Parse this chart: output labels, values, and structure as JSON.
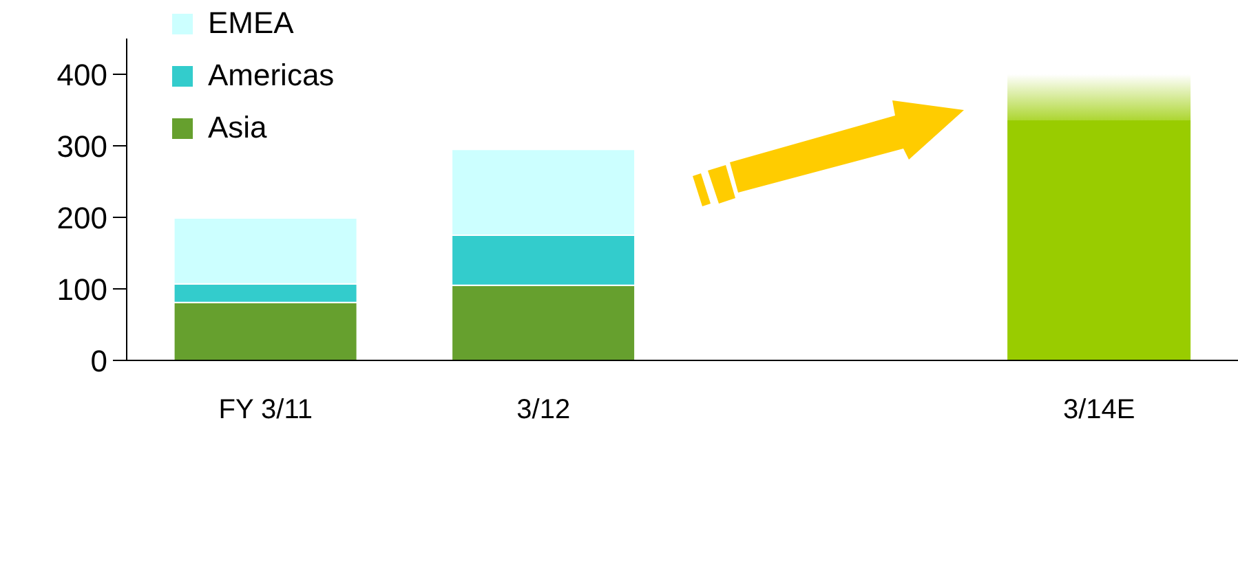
{
  "chart_data": {
    "type": "bar",
    "stacked": true,
    "categories": [
      "FY 3/11",
      "3/12",
      null,
      "3/14E"
    ],
    "series": [
      {
        "name": "Asia",
        "color": "#66a02e",
        "values": [
          81,
          105,
          null,
          null
        ]
      },
      {
        "name": "Americas",
        "color": "#33cccc",
        "values": [
          26,
          70,
          null,
          null
        ]
      },
      {
        "name": "EMEA",
        "color": "#ccffff",
        "values": [
          92,
          120,
          null,
          null
        ]
      },
      {
        "color": "#99cc00",
        "values": [
          null,
          null,
          null,
          400
        ]
      }
    ],
    "ylim": [
      0,
      450
    ],
    "yticks": [
      0,
      100,
      200,
      300,
      400
    ],
    "grid": false,
    "legend": "top left"
  }
}
